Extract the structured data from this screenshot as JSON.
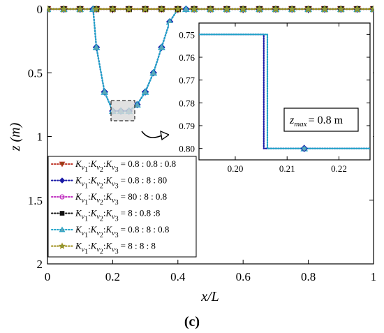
{
  "panel_label": "(c)",
  "chart_data": [
    {
      "type": "line",
      "xlabel": "x/L",
      "ylabel": "z (m)",
      "xlim": [
        0,
        1
      ],
      "ylim": [
        2,
        0
      ],
      "y_reversed": true,
      "xticks": [
        0,
        0.2,
        0.4,
        0.6,
        0.8,
        1
      ],
      "xtick_labels": [
        "0",
        "0.2",
        "0.4",
        "0.6",
        "0.8",
        "1"
      ],
      "yticks": [
        0,
        0.5,
        1,
        1.5,
        2
      ],
      "ytick_labels": [
        "0",
        "0.5",
        "1",
        "1.5",
        "2"
      ],
      "grid": false,
      "legend_position": "lower-left",
      "series": [
        {
          "name": "Kv1:Kv2:Kv3 = 0.8 : 0.8 : 0.8",
          "label_values": "= 0.8 : 0.8 : 0.8",
          "color": "#c0392b",
          "line_style": "dotted",
          "marker": "triangle-down",
          "marker_fill": "#8b4513",
          "x": [
            0,
            0.025,
            0.05,
            0.075,
            0.1,
            0.125,
            0.15,
            0.175,
            0.2,
            0.225,
            0.25,
            0.275,
            0.3,
            0.325,
            0.35,
            0.375,
            0.4,
            0.425,
            0.45,
            0.475,
            0.5,
            0.525,
            0.55,
            0.575,
            0.6,
            0.625,
            0.65,
            0.675,
            0.7,
            0.725,
            0.75,
            0.775,
            0.8,
            0.825,
            0.85,
            0.875,
            0.9,
            0.925,
            0.95,
            0.975,
            1
          ],
          "y": [
            0,
            0,
            0,
            0,
            0,
            0,
            0,
            0,
            0,
            0,
            0,
            0,
            0,
            0,
            0,
            0,
            0,
            0,
            0,
            0,
            0,
            0,
            0,
            0,
            0,
            0,
            0,
            0,
            0,
            0,
            0,
            0,
            0,
            0,
            0,
            0,
            0,
            0,
            0,
            0,
            0
          ]
        },
        {
          "name": "Kv1:Kv2:Kv3 = 0.8 : 8 : 80",
          "label_values": "= 0.8 : 8 : 80",
          "color": "#1a1aa6",
          "line_style": "dotted",
          "marker": "diamond",
          "marker_fill": "#1a1aa6",
          "x": [
            0,
            0.025,
            0.05,
            0.075,
            0.1,
            0.125,
            0.14,
            0.15,
            0.175,
            0.2,
            0.225,
            0.25,
            0.275,
            0.3,
            0.325,
            0.35,
            0.375,
            0.4,
            0.425,
            0.43,
            0.45,
            0.475,
            0.5,
            0.525,
            0.55,
            0.575,
            0.6,
            0.625,
            0.65,
            0.675,
            0.7,
            0.725,
            0.75,
            0.775,
            0.8,
            0.825,
            0.85,
            0.875,
            0.9,
            0.925,
            0.95,
            0.975,
            1
          ],
          "y": [
            0,
            0,
            0,
            0,
            0,
            0,
            0,
            0.3,
            0.65,
            0.8,
            0.8,
            0.8,
            0.75,
            0.65,
            0.5,
            0.3,
            0.1,
            0,
            0,
            0,
            0,
            0,
            0,
            0,
            0,
            0,
            0,
            0,
            0,
            0,
            0,
            0,
            0,
            0,
            0,
            0,
            0,
            0,
            0,
            0,
            0,
            0,
            0
          ]
        },
        {
          "name": "Kv1:Kv2:Kv3 = 80 : 8 : 0.8",
          "label_values": "= 80 : 8 : 0.8",
          "color": "#c030c0",
          "line_style": "dotted",
          "marker": "circle-open",
          "marker_fill": "none",
          "x": [
            0,
            0.025,
            0.05,
            0.075,
            0.1,
            0.125,
            0.15,
            0.175,
            0.2,
            0.225,
            0.25,
            0.275,
            0.3,
            0.325,
            0.35,
            0.375,
            0.4,
            0.425,
            0.45,
            0.475,
            0.5,
            0.525,
            0.55,
            0.575,
            0.6,
            0.625,
            0.65,
            0.675,
            0.7,
            0.725,
            0.75,
            0.775,
            0.8,
            0.825,
            0.85,
            0.875,
            0.9,
            0.925,
            0.95,
            0.975,
            1
          ],
          "y": [
            0,
            0,
            0,
            0,
            0,
            0,
            0,
            0,
            0,
            0,
            0,
            0,
            0,
            0,
            0,
            0,
            0,
            0,
            0,
            0,
            0,
            0,
            0,
            0,
            0,
            0,
            0,
            0,
            0,
            0,
            0,
            0,
            0,
            0,
            0,
            0,
            0,
            0,
            0,
            0,
            0
          ]
        },
        {
          "name": "Kv1:Kv2:Kv3 = 8 : 0.8 :8",
          "label_values": "= 8 : 0.8 :8",
          "color": "#111111",
          "line_style": "dotted",
          "marker": "square",
          "marker_fill": "#111111",
          "x": [
            0,
            0.025,
            0.05,
            0.075,
            0.1,
            0.125,
            0.15,
            0.175,
            0.2,
            0.225,
            0.25,
            0.275,
            0.3,
            0.325,
            0.35,
            0.375,
            0.4,
            0.425,
            0.45,
            0.475,
            0.5,
            0.525,
            0.55,
            0.575,
            0.6,
            0.625,
            0.65,
            0.675,
            0.7,
            0.725,
            0.75,
            0.775,
            0.8,
            0.825,
            0.85,
            0.875,
            0.9,
            0.925,
            0.95,
            0.975,
            1
          ],
          "y": [
            0,
            0,
            0,
            0,
            0,
            0,
            0,
            0,
            0,
            0,
            0,
            0,
            0,
            0,
            0,
            0,
            0,
            0,
            0,
            0,
            0,
            0,
            0,
            0,
            0,
            0,
            0,
            0,
            0,
            0,
            0,
            0,
            0,
            0,
            0,
            0,
            0,
            0,
            0,
            0,
            0
          ]
        },
        {
          "name": "Kv1:Kv2:Kv3 = 0.8 : 8 : 0.8",
          "label_values": "= 0.8 : 8 : 0.8",
          "color": "#1fa3c8",
          "line_style": "dotted",
          "marker": "triangle-up",
          "marker_fill": "#5fa6b8",
          "x": [
            0,
            0.025,
            0.05,
            0.075,
            0.1,
            0.125,
            0.14,
            0.15,
            0.175,
            0.2,
            0.225,
            0.25,
            0.275,
            0.3,
            0.325,
            0.35,
            0.375,
            0.4,
            0.425,
            0.43,
            0.45,
            0.475,
            0.5,
            0.525,
            0.55,
            0.575,
            0.6,
            0.625,
            0.65,
            0.675,
            0.7,
            0.725,
            0.75,
            0.775,
            0.8,
            0.825,
            0.85,
            0.875,
            0.9,
            0.925,
            0.95,
            0.975,
            1
          ],
          "y": [
            0,
            0,
            0,
            0,
            0,
            0,
            0,
            0.3,
            0.65,
            0.8,
            0.8,
            0.8,
            0.75,
            0.65,
            0.5,
            0.3,
            0.1,
            0,
            0,
            0,
            0,
            0,
            0,
            0,
            0,
            0,
            0,
            0,
            0,
            0,
            0,
            0,
            0,
            0,
            0,
            0,
            0,
            0,
            0,
            0,
            0,
            0,
            0
          ]
        },
        {
          "name": "Kv1:Kv2:Kv3 = 8 : 8 : 8",
          "label_values": "= 8 : 8 : 8",
          "color": "#9a8a10",
          "line_style": "dotted",
          "marker": "star",
          "marker_fill": "#8a9a40",
          "x": [
            0,
            0.025,
            0.05,
            0.075,
            0.1,
            0.125,
            0.15,
            0.175,
            0.2,
            0.225,
            0.25,
            0.275,
            0.3,
            0.325,
            0.35,
            0.375,
            0.4,
            0.425,
            0.45,
            0.475,
            0.5,
            0.525,
            0.55,
            0.575,
            0.6,
            0.625,
            0.65,
            0.675,
            0.7,
            0.725,
            0.75,
            0.775,
            0.8,
            0.825,
            0.85,
            0.875,
            0.9,
            0.925,
            0.95,
            0.975,
            1
          ],
          "y": [
            0,
            0,
            0,
            0,
            0,
            0,
            0,
            0,
            0,
            0,
            0,
            0,
            0,
            0,
            0,
            0,
            0,
            0,
            0,
            0,
            0,
            0,
            0,
            0,
            0,
            0,
            0,
            0,
            0,
            0,
            0,
            0,
            0,
            0,
            0,
            0,
            0,
            0,
            0,
            0,
            0
          ]
        }
      ]
    },
    {
      "type": "line",
      "inset": true,
      "xlim": [
        0.193,
        0.226
      ],
      "ylim": [
        0.805,
        0.745
      ],
      "y_reversed": true,
      "xticks": [
        0.2,
        0.21,
        0.22
      ],
      "xtick_labels": [
        "0.20",
        "0.21",
        "0.22"
      ],
      "yticks": [
        0.75,
        0.76,
        0.77,
        0.78,
        0.79,
        0.8
      ],
      "ytick_labels": [
        "0.75",
        "0.76",
        "0.77",
        "0.78",
        "0.79",
        "0.80"
      ],
      "annotation": {
        "var": "z",
        "sub": "max",
        "text": "= 0.8 m"
      },
      "series": [
        {
          "name": "0.8 : 8 : 80",
          "color": "#1a1aa6",
          "x": [
            0.193,
            0.2055,
            0.2055,
            0.226
          ],
          "y": [
            0.75,
            0.75,
            0.8,
            0.8
          ]
        },
        {
          "name": "0.8 : 8 : 0.8",
          "color": "#1fa3c8",
          "x": [
            0.193,
            0.2062,
            0.2062,
            0.226
          ],
          "y": [
            0.75,
            0.75,
            0.8,
            0.8
          ]
        }
      ],
      "points": [
        {
          "x": 0.2133,
          "y": 0.8
        }
      ]
    }
  ]
}
